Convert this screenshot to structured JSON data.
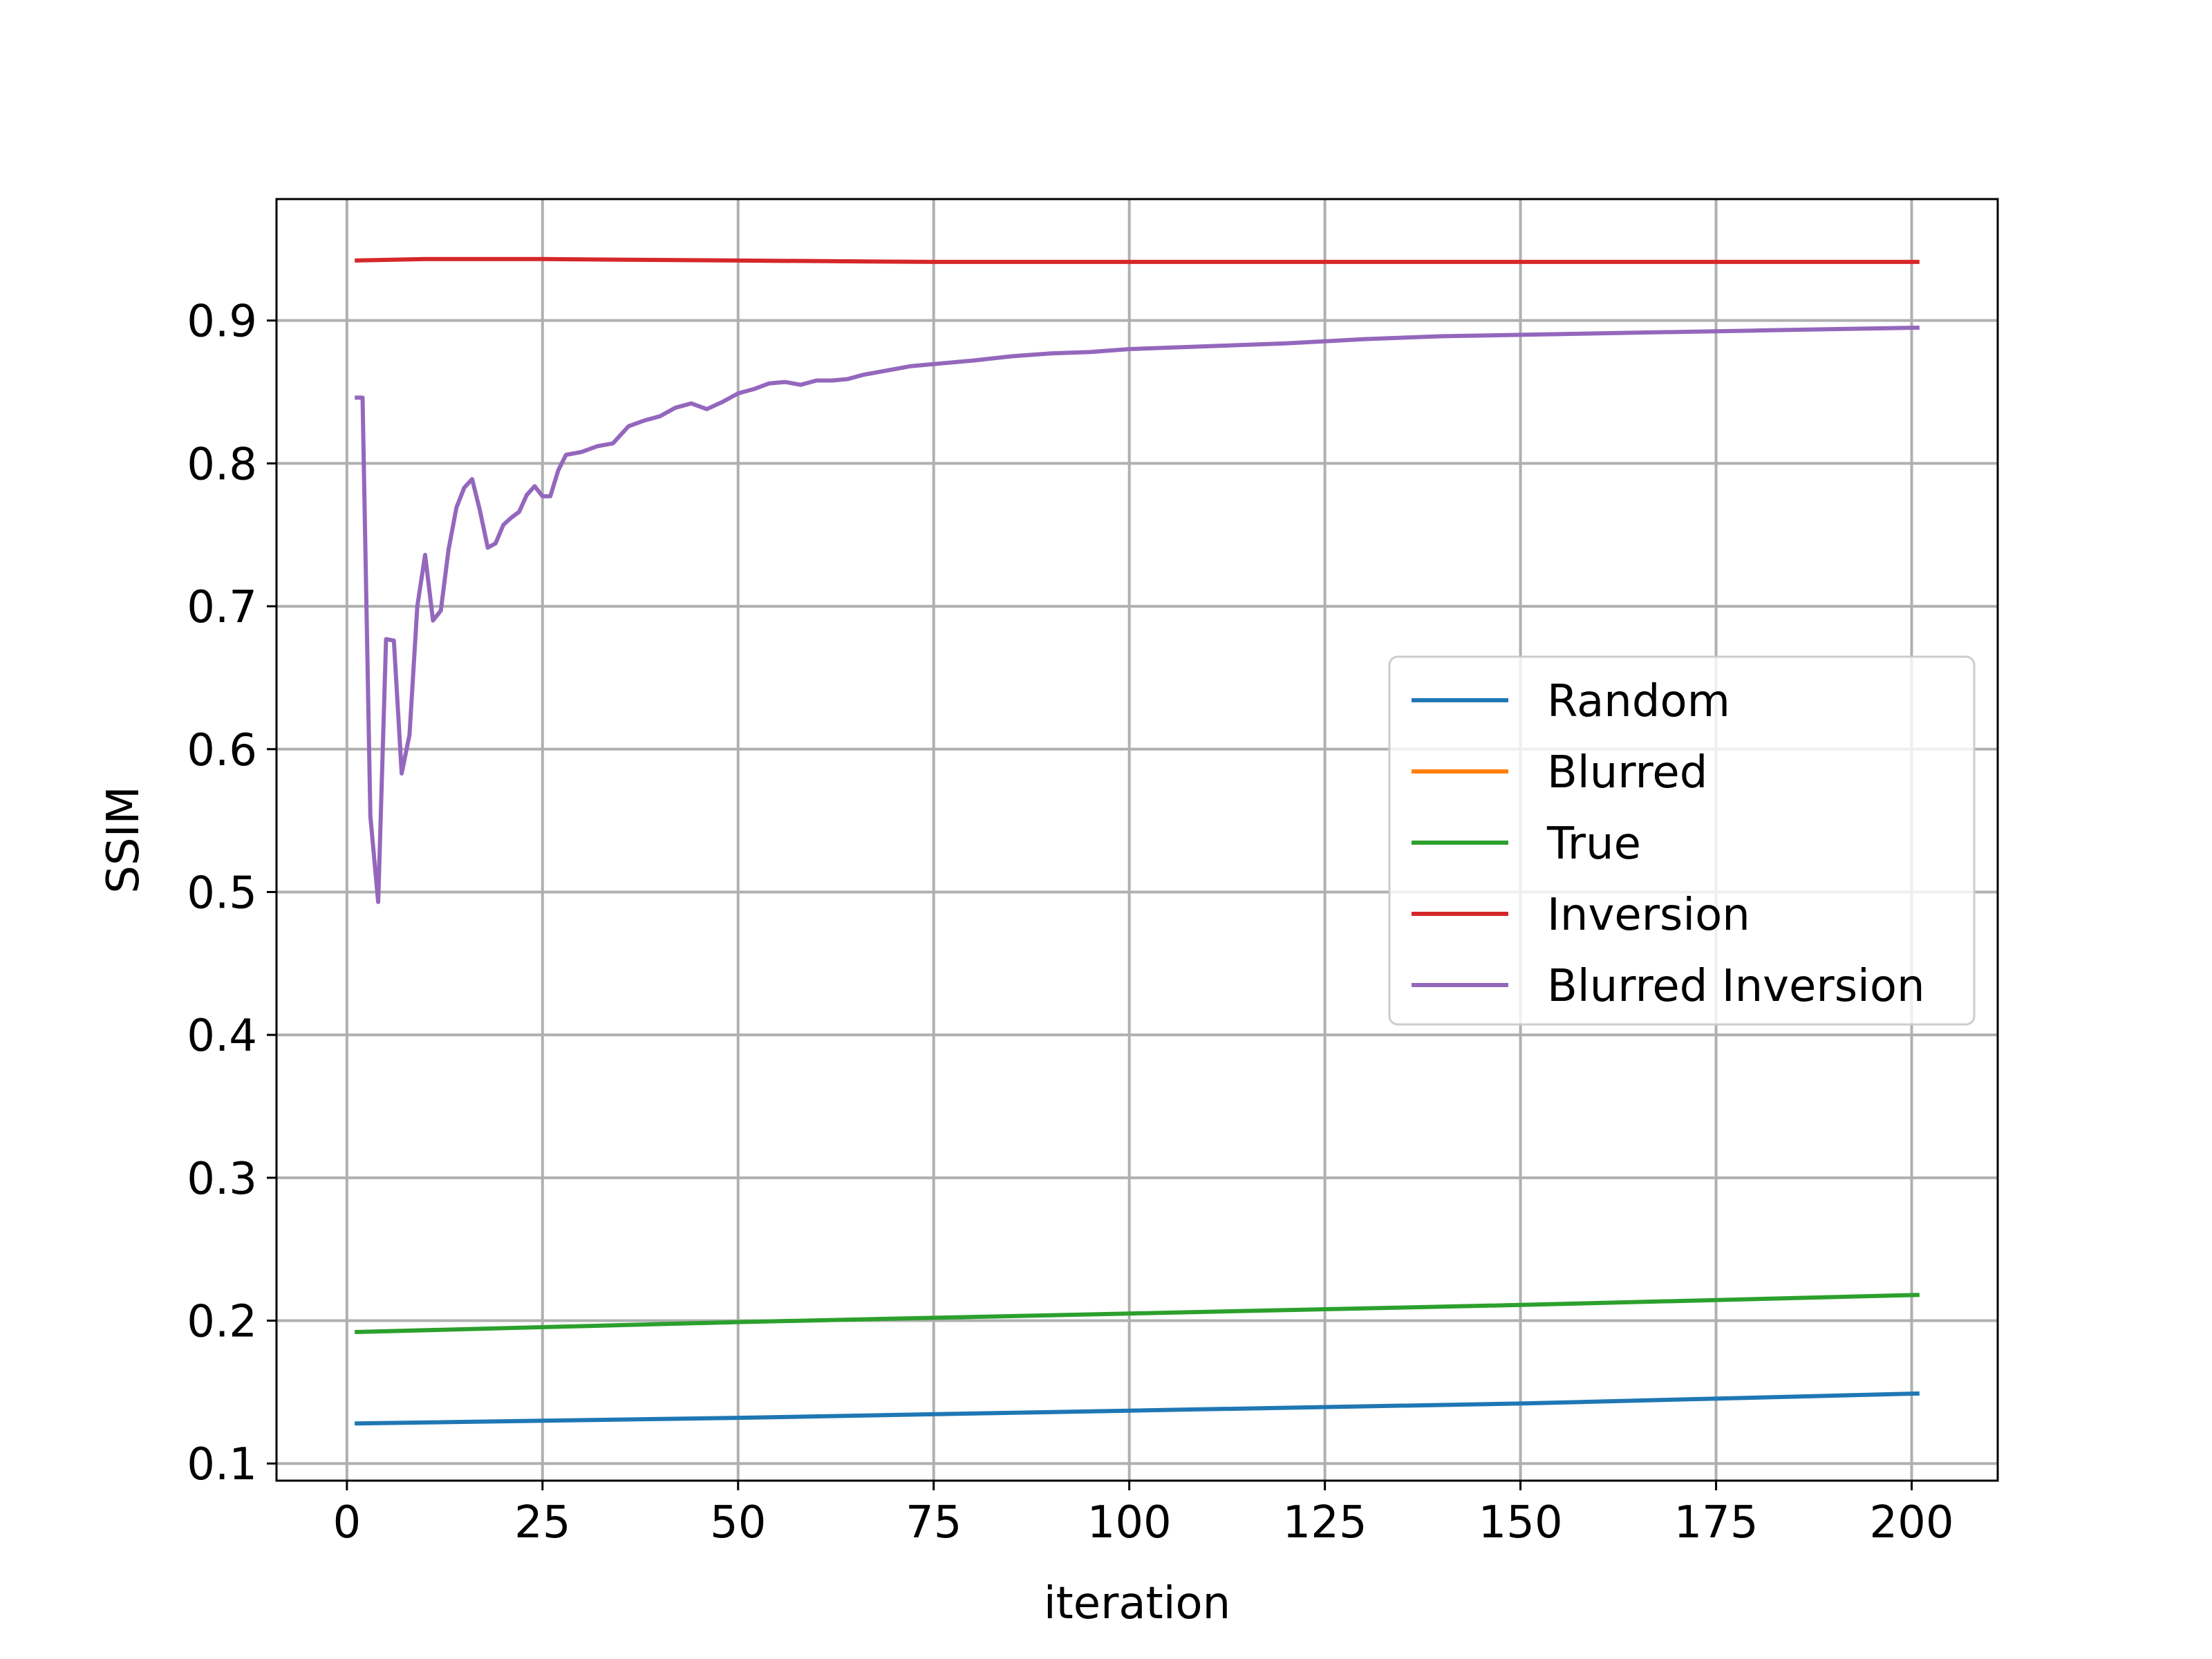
{
  "chart_data": {
    "type": "line",
    "title": "",
    "xlabel": "iteration",
    "ylabel": "SSIM",
    "xlim": [
      -9,
      211
    ],
    "ylim": [
      0.088,
      0.985
    ],
    "xticks": [
      0,
      25,
      50,
      75,
      100,
      125,
      150,
      175,
      200
    ],
    "xtick_labels": [
      "0",
      "25",
      "50",
      "75",
      "100",
      "125",
      "150",
      "175",
      "200"
    ],
    "yticks": [
      0.1,
      0.2,
      0.3,
      0.4,
      0.5,
      0.6,
      0.7,
      0.8,
      0.9
    ],
    "ytick_labels": [
      "0.1",
      "0.2",
      "0.3",
      "0.4",
      "0.5",
      "0.6",
      "0.7",
      "0.8",
      "0.9"
    ],
    "grid": true,
    "legend_position": "center-right",
    "series": [
      {
        "name": "Random",
        "color": "#1f77b4",
        "x": [
          1,
          50,
          100,
          150,
          201
        ],
        "y": [
          0.128,
          0.132,
          0.137,
          0.142,
          0.149
        ]
      },
      {
        "name": "Blurred",
        "color": "#ff7f0e",
        "x": [],
        "y": []
      },
      {
        "name": "True",
        "color": "#2ca02c",
        "x": [
          1,
          50,
          100,
          150,
          201
        ],
        "y": [
          0.192,
          0.199,
          0.205,
          0.211,
          0.218
        ]
      },
      {
        "name": "Inversion",
        "color": "#d62728",
        "x": [
          1,
          10,
          25,
          50,
          75,
          100,
          150,
          201
        ],
        "y": [
          0.942,
          0.943,
          0.943,
          0.942,
          0.941,
          0.941,
          0.941,
          0.941
        ]
      },
      {
        "name": "Blurred Inversion",
        "color": "#9467bd",
        "x": [
          1,
          2,
          3,
          4,
          5,
          6,
          7,
          8,
          9,
          10,
          11,
          12,
          13,
          14,
          15,
          16,
          17,
          18,
          19,
          20,
          21,
          22,
          23,
          24,
          25,
          26,
          27,
          28,
          30,
          32,
          34,
          36,
          38,
          40,
          42,
          44,
          46,
          48,
          50,
          52,
          54,
          56,
          58,
          60,
          62,
          64,
          66,
          68,
          70,
          72,
          74,
          76,
          78,
          80,
          85,
          90,
          95,
          100,
          110,
          120,
          130,
          140,
          150,
          160,
          170,
          180,
          190,
          201
        ],
        "y": [
          0.846,
          0.846,
          0.553,
          0.493,
          0.677,
          0.676,
          0.583,
          0.61,
          0.7,
          0.736,
          0.69,
          0.697,
          0.74,
          0.769,
          0.783,
          0.789,
          0.767,
          0.741,
          0.744,
          0.757,
          0.762,
          0.766,
          0.778,
          0.784,
          0.777,
          0.777,
          0.795,
          0.806,
          0.808,
          0.812,
          0.814,
          0.826,
          0.83,
          0.833,
          0.839,
          0.842,
          0.838,
          0.843,
          0.849,
          0.852,
          0.856,
          0.857,
          0.855,
          0.858,
          0.858,
          0.859,
          0.862,
          0.864,
          0.866,
          0.868,
          0.869,
          0.87,
          0.871,
          0.872,
          0.875,
          0.877,
          0.878,
          0.88,
          0.882,
          0.884,
          0.887,
          0.889,
          0.89,
          0.891,
          0.892,
          0.893,
          0.894,
          0.895
        ]
      }
    ]
  }
}
